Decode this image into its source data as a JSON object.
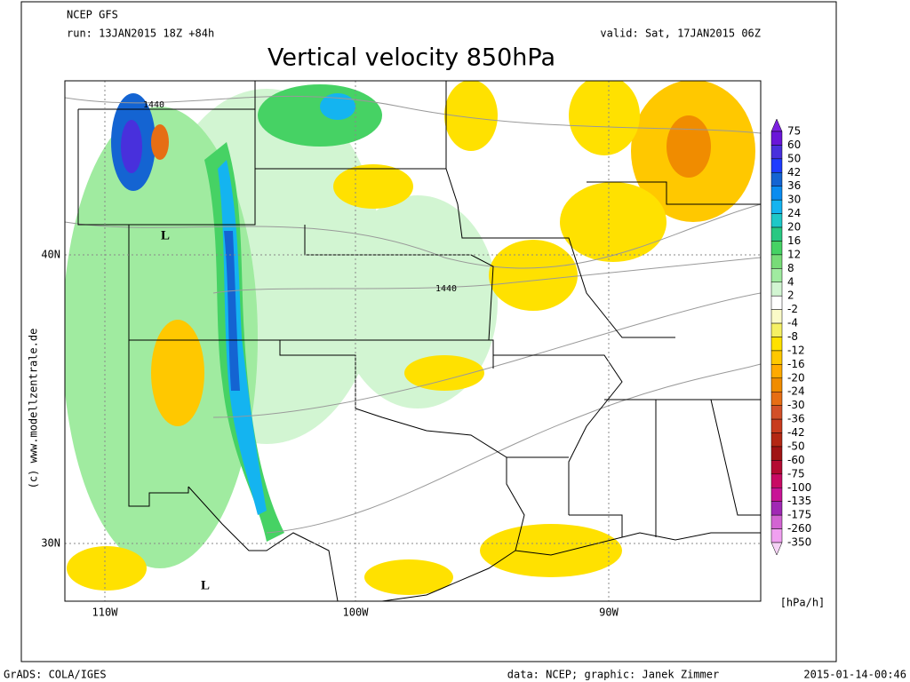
{
  "header": {
    "model": "NCEP GFS",
    "run": "run: 13JAN2015 18Z +84h",
    "valid": "valid: Sat, 17JAN2015 06Z",
    "title": "Vertical velocity 850hPa"
  },
  "map": {
    "lat_labels": [
      "40N",
      "30N"
    ],
    "lon_labels": [
      "110W",
      "100W",
      "90W"
    ],
    "contour_labels": [
      "1440",
      "1440"
    ],
    "lows": [
      "L",
      "L"
    ],
    "copyright": "(c) www.modellzentrale.de"
  },
  "colorbar": {
    "levels": [
      75,
      60,
      50,
      42,
      36,
      30,
      24,
      20,
      16,
      12,
      8,
      4,
      2,
      -2,
      -4,
      -8,
      -12,
      -16,
      -20,
      -24,
      -30,
      -36,
      -42,
      -50,
      -60,
      -75,
      -100,
      -135,
      -175,
      -260,
      -350
    ],
    "colors": [
      "#7c20e0",
      "#6a15d8",
      "#4830dc",
      "#1e3cff",
      "#1464d2",
      "#0a8cf0",
      "#14b4f0",
      "#1ec8c8",
      "#28c882",
      "#46d264",
      "#78dc78",
      "#a0eba0",
      "#d2f5d2",
      "#ffffff",
      "#fafac8",
      "#f5f064",
      "#ffe100",
      "#ffc800",
      "#ffaa00",
      "#f08c00",
      "#e66e14",
      "#d25028",
      "#c83c1e",
      "#b42814",
      "#a01414",
      "#b40a32",
      "#c80a64",
      "#c81496",
      "#a028b4",
      "#d264d2",
      "#f0a0f0",
      "#f5d2f5"
    ],
    "unit": "[hPa/h]"
  },
  "footer": {
    "left": "GrADS: COLA/IGES",
    "center": "data: NCEP; graphic: Janek Zimmer",
    "right": "2015-01-14-00:46"
  }
}
